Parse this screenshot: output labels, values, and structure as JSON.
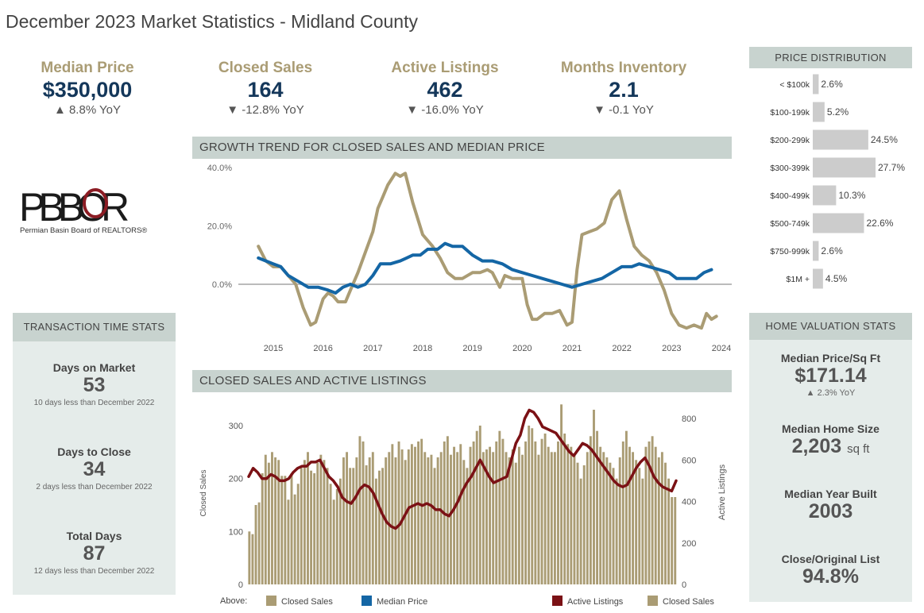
{
  "page": {
    "title": "December 2023 Market Statistics - Midland County"
  },
  "kpis": [
    {
      "label": "Median Price",
      "value": "$350,000",
      "change": "▲ 8.8% YoY"
    },
    {
      "label": "Closed Sales",
      "value": "164",
      "change": "▼ -12.8% YoY"
    },
    {
      "label": "Active Listings",
      "value": "462",
      "change": "▼ -16.0% YoY"
    },
    {
      "label": "Months Inventory",
      "value": "2.1",
      "change": "▼ -0.1 YoY"
    }
  ],
  "logo": {
    "mark": "PBBOR",
    "caption": "Permian Basin Board of REALTORS®"
  },
  "transaction_time": {
    "header": "TRANSACTION TIME STATS",
    "items": [
      {
        "label": "Days on Market",
        "value": "53",
        "note": "10 days less than December 2022"
      },
      {
        "label": "Days to Close",
        "value": "34",
        "note": "2 days less than December 2022"
      },
      {
        "label": "Total Days",
        "value": "87",
        "note": "12 days less than December 2022"
      }
    ]
  },
  "home_valuation": {
    "header": "HOME VALUATION STATS",
    "items": [
      {
        "label": "Median Price/Sq Ft",
        "value": "$171.14",
        "unit": "",
        "note": "▲ 2.3% YoY"
      },
      {
        "label": "Median Home Size",
        "value": "2,203",
        "unit": "sq ft",
        "note": ""
      },
      {
        "label": "Median Year Built",
        "value": "2003",
        "unit": "",
        "note": ""
      },
      {
        "label": "Close/Original List",
        "value": "94.8%",
        "unit": "",
        "note": ""
      }
    ]
  },
  "colors": {
    "gold": "#aa9c74",
    "blue": "#1466a5",
    "maroon": "#7b1115",
    "bar_gray": "#cccccc",
    "navy": "#14375a",
    "header_bg": "#c8d3cf",
    "panel_bg": "#e5ecea"
  },
  "chart_data": [
    {
      "id": "growth_trend",
      "type": "line",
      "title": "GROWTH TREND FOR CLOSED SALES AND MEDIAN PRICE",
      "x_ticks": [
        "2015",
        "2016",
        "2017",
        "2018",
        "2019",
        "2020",
        "2021",
        "2022",
        "2023",
        "2024"
      ],
      "y_ticks": [
        "40.0%",
        "20.0%",
        "0.0%"
      ],
      "ylim": [
        -16,
        42
      ],
      "legend_prefix": "Above:",
      "series": [
        {
          "name": "Closed Sales",
          "color": "#aa9c74",
          "points": [
            [
              2014.7,
              13
            ],
            [
              2014.85,
              8
            ],
            [
              2015.0,
              6
            ],
            [
              2015.15,
              6
            ],
            [
              2015.3,
              3
            ],
            [
              2015.45,
              0
            ],
            [
              2015.6,
              -8
            ],
            [
              2015.75,
              -14
            ],
            [
              2015.85,
              -13
            ],
            [
              2016.0,
              -5
            ],
            [
              2016.1,
              -3
            ],
            [
              2016.2,
              -4
            ],
            [
              2016.3,
              -6
            ],
            [
              2016.45,
              -6
            ],
            [
              2016.55,
              -2
            ],
            [
              2016.7,
              4
            ],
            [
              2016.85,
              11
            ],
            [
              2017.0,
              18
            ],
            [
              2017.1,
              26
            ],
            [
              2017.2,
              30
            ],
            [
              2017.3,
              34
            ],
            [
              2017.45,
              38
            ],
            [
              2017.55,
              37
            ],
            [
              2017.65,
              38
            ],
            [
              2017.8,
              28
            ],
            [
              2018.0,
              17
            ],
            [
              2018.2,
              13
            ],
            [
              2018.35,
              9
            ],
            [
              2018.5,
              4
            ],
            [
              2018.65,
              2
            ],
            [
              2018.8,
              2
            ],
            [
              2019.0,
              4
            ],
            [
              2019.15,
              4
            ],
            [
              2019.3,
              5
            ],
            [
              2019.4,
              4
            ],
            [
              2019.55,
              -1
            ],
            [
              2019.65,
              3
            ],
            [
              2019.8,
              2
            ],
            [
              2020.0,
              2
            ],
            [
              2020.1,
              -7
            ],
            [
              2020.2,
              -12
            ],
            [
              2020.3,
              -12
            ],
            [
              2020.45,
              -10
            ],
            [
              2020.6,
              -10
            ],
            [
              2020.75,
              -9
            ],
            [
              2020.9,
              -14
            ],
            [
              2021.0,
              -13
            ],
            [
              2021.1,
              5
            ],
            [
              2021.2,
              17
            ],
            [
              2021.35,
              18
            ],
            [
              2021.5,
              19
            ],
            [
              2021.65,
              21
            ],
            [
              2021.8,
              29
            ],
            [
              2021.95,
              32
            ],
            [
              2022.1,
              22
            ],
            [
              2022.25,
              13
            ],
            [
              2022.4,
              10
            ],
            [
              2022.55,
              8
            ],
            [
              2022.7,
              4
            ],
            [
              2022.85,
              -2
            ],
            [
              2023.0,
              -10
            ],
            [
              2023.15,
              -14
            ],
            [
              2023.3,
              -15
            ],
            [
              2023.45,
              -14
            ],
            [
              2023.6,
              -15
            ],
            [
              2023.7,
              -10
            ],
            [
              2023.8,
              -12
            ],
            [
              2023.9,
              -11
            ]
          ]
        },
        {
          "name": "Median Price",
          "color": "#1466a5",
          "points": [
            [
              2014.7,
              9
            ],
            [
              2014.85,
              8
            ],
            [
              2015.0,
              7
            ],
            [
              2015.15,
              6
            ],
            [
              2015.3,
              3
            ],
            [
              2015.5,
              1
            ],
            [
              2015.7,
              -1
            ],
            [
              2015.9,
              -1
            ],
            [
              2016.1,
              -2
            ],
            [
              2016.25,
              -3
            ],
            [
              2016.4,
              -1
            ],
            [
              2016.55,
              0
            ],
            [
              2016.7,
              -1
            ],
            [
              2016.85,
              0
            ],
            [
              2017.0,
              3
            ],
            [
              2017.15,
              7
            ],
            [
              2017.35,
              7
            ],
            [
              2017.55,
              8
            ],
            [
              2017.8,
              10
            ],
            [
              2017.95,
              10
            ],
            [
              2018.1,
              12
            ],
            [
              2018.3,
              12
            ],
            [
              2018.45,
              14
            ],
            [
              2018.6,
              13
            ],
            [
              2018.8,
              13
            ],
            [
              2019.0,
              10
            ],
            [
              2019.2,
              8
            ],
            [
              2019.4,
              8
            ],
            [
              2019.6,
              7
            ],
            [
              2019.8,
              5
            ],
            [
              2020.0,
              4
            ],
            [
              2020.2,
              3
            ],
            [
              2020.4,
              2
            ],
            [
              2020.6,
              1
            ],
            [
              2020.8,
              0
            ],
            [
              2021.0,
              -1
            ],
            [
              2021.2,
              0
            ],
            [
              2021.4,
              1
            ],
            [
              2021.6,
              2
            ],
            [
              2021.8,
              4
            ],
            [
              2022.0,
              6
            ],
            [
              2022.2,
              6
            ],
            [
              2022.35,
              7
            ],
            [
              2022.55,
              6
            ],
            [
              2022.75,
              5
            ],
            [
              2022.95,
              4
            ],
            [
              2023.1,
              2
            ],
            [
              2023.3,
              2
            ],
            [
              2023.5,
              2
            ],
            [
              2023.65,
              4
            ],
            [
              2023.8,
              5
            ]
          ]
        }
      ]
    },
    {
      "id": "sales_and_listings",
      "type": "bar",
      "title": "CLOSED SALES AND ACTIVE LISTINGS",
      "left_axis": {
        "label": "Closed Sales",
        "ticks": [
          "300",
          "200",
          "100",
          "0"
        ],
        "ylim": [
          0,
          310
        ]
      },
      "right_axis": {
        "label": "Active Listings",
        "ticks": [
          "800",
          "600",
          "400",
          "200",
          "0"
        ],
        "ylim": [
          0,
          827
        ]
      },
      "bar_series": {
        "name": "Closed Sales",
        "color": "#aa9c74",
        "values": [
          100,
          95,
          150,
          155,
          210,
          245,
          230,
          250,
          240,
          235,
          205,
          205,
          160,
          210,
          170,
          190,
          220,
          235,
          250,
          215,
          210,
          230,
          245,
          235,
          220,
          190,
          160,
          180,
          200,
          240,
          250,
          220,
          220,
          240,
          280,
          270,
          225,
          240,
          250,
          200,
          215,
          220,
          240,
          250,
          265,
          240,
          270,
          255,
          235,
          255,
          265,
          260,
          270,
          275,
          250,
          240,
          245,
          220,
          240,
          250,
          270,
          280,
          245,
          260,
          250,
          265,
          235,
          220,
          260,
          270,
          290,
          300,
          250,
          255,
          260,
          250,
          270,
          290,
          275,
          250,
          240,
          255,
          230,
          260,
          245,
          270,
          300,
          295,
          270,
          245,
          275,
          285,
          260,
          250,
          250,
          270,
          340,
          285,
          265,
          260,
          245,
          230,
          200,
          225,
          250,
          280,
          330,
          290,
          260,
          250,
          240,
          230,
          220,
          200,
          240,
          270,
          290,
          260,
          250,
          235,
          220,
          200,
          260,
          270,
          280,
          260,
          240,
          250,
          230,
          200,
          165,
          165
        ]
      },
      "line_series": {
        "name": "Active Listings",
        "color": "#7b1115",
        "values": [
          520,
          560,
          540,
          510,
          510,
          530,
          520,
          500,
          500,
          510,
          540,
          560,
          570,
          570,
          590,
          590,
          600,
          560,
          520,
          500,
          470,
          420,
          400,
          390,
          420,
          460,
          480,
          470,
          440,
          390,
          340,
          300,
          280,
          270,
          290,
          330,
          370,
          380,
          390,
          380,
          390,
          380,
          360,
          360,
          340,
          330,
          360,
          400,
          450,
          490,
          520,
          560,
          600,
          560,
          520,
          490,
          500,
          510,
          520,
          600,
          680,
          720,
          800,
          840,
          830,
          800,
          760,
          750,
          740,
          730,
          700,
          670,
          640,
          620,
          650,
          680,
          670,
          650,
          620,
          590,
          560,
          530,
          500,
          480,
          470,
          480,
          520,
          560,
          590,
          610,
          570,
          520,
          490,
          470,
          460,
          450,
          500
        ]
      },
      "legend": [
        {
          "label": "Active Listings",
          "color": "#7b1115"
        },
        {
          "label": "Closed Sales",
          "color": "#aa9c74"
        }
      ]
    },
    {
      "id": "price_distribution",
      "type": "bar",
      "title": "PRICE DISTRIBUTION",
      "categories": [
        "< $100k",
        "$100-199k",
        "$200-299k",
        "$300-399k",
        "$400-499k",
        "$500-749k",
        "$750-999k",
        "$1M +"
      ],
      "values": [
        2.6,
        5.2,
        24.5,
        27.7,
        10.3,
        22.6,
        2.6,
        4.5
      ],
      "labels": [
        "2.6%",
        "5.2%",
        "24.5%",
        "27.7%",
        "10.3%",
        "22.6%",
        "2.6%",
        "4.5%"
      ],
      "xlim": [
        0,
        27.7
      ],
      "color": "#cccccc"
    }
  ]
}
